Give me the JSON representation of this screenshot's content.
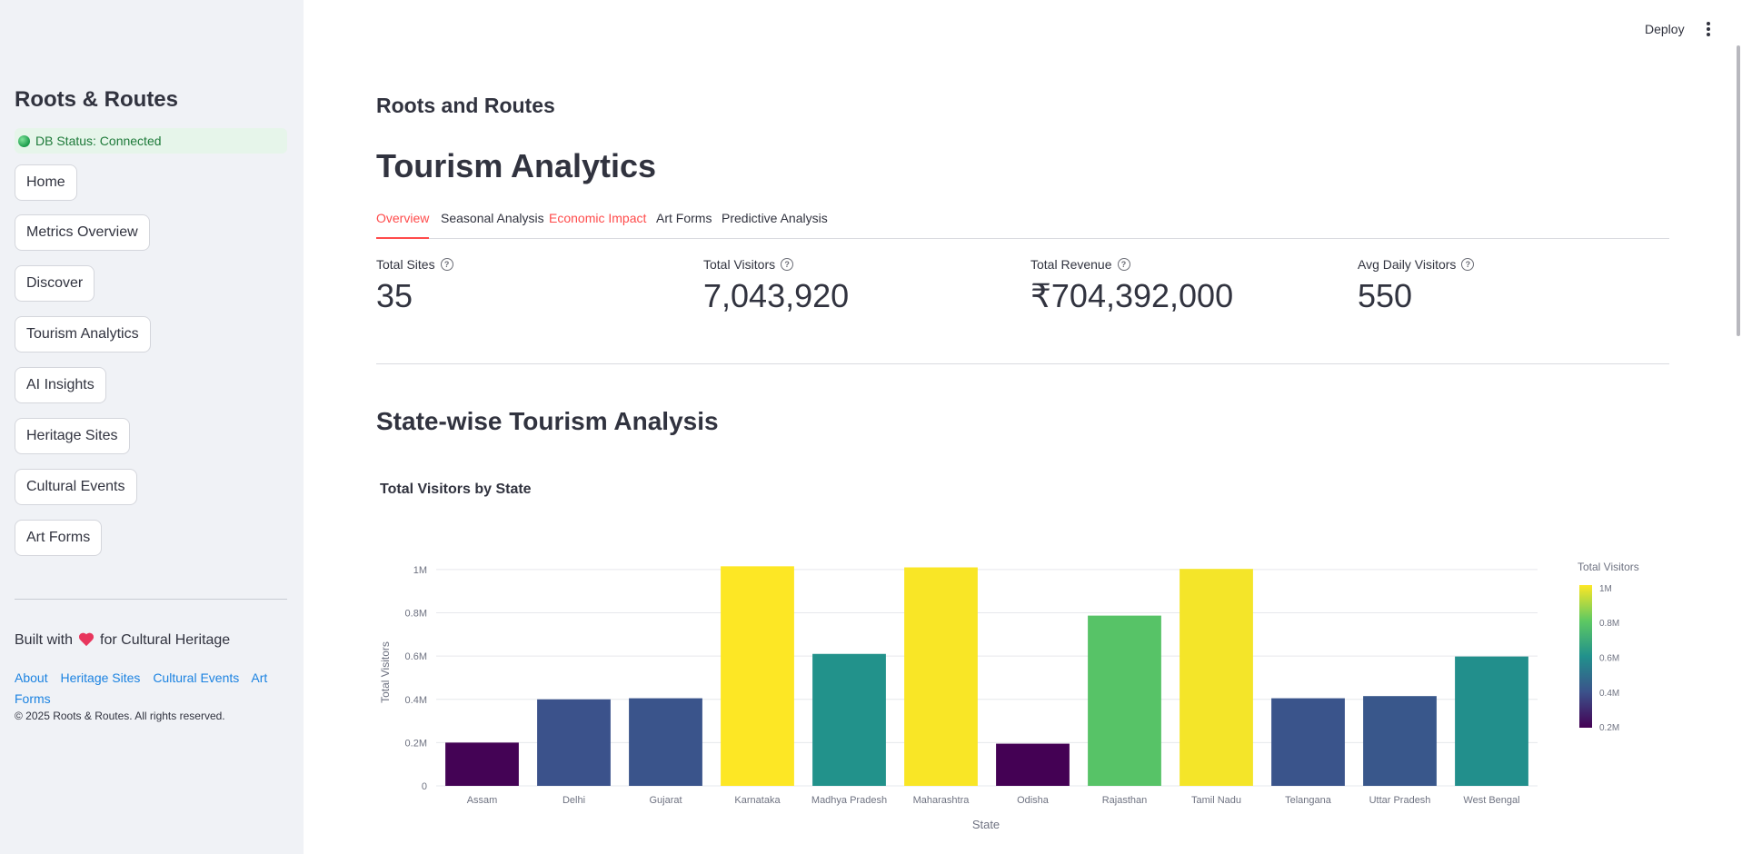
{
  "sidebar": {
    "brand": "Roots & Routes",
    "db_status": "DB Status: Connected",
    "nav": [
      "Home",
      "Metrics Overview",
      "Discover",
      "Tourism Analytics",
      "AI Insights",
      "Heritage Sites",
      "Cultural Events",
      "Art Forms"
    ],
    "built_prefix": "Built with",
    "built_suffix": "for Cultural Heritage",
    "footer_links": [
      "About",
      "Heritage Sites",
      "Cultural Events",
      "Art Forms"
    ],
    "copyright": "© 2025 Roots & Routes. All rights reserved."
  },
  "header": {
    "deploy": "Deploy"
  },
  "main": {
    "app_title": "Roots and Routes",
    "page_title": "Tourism Analytics",
    "tabs": [
      "Overview",
      "Seasonal Analysis",
      "Economic Impact",
      "Art Forms",
      "Predictive Analysis"
    ],
    "active_tab": "Overview",
    "metrics": [
      {
        "label": "Total Sites",
        "value": "35"
      },
      {
        "label": "Total Visitors",
        "value": "7,043,920"
      },
      {
        "label": "Total Revenue",
        "value": "₹704,392,000"
      },
      {
        "label": "Avg Daily Visitors",
        "value": "550"
      }
    ],
    "section_title": "State-wise Tourism Analysis"
  },
  "colors": {
    "accent": "#ff4b4b",
    "link": "#1c83e1",
    "sidebar_bg": "#f0f2f6"
  },
  "chart_data": {
    "type": "bar",
    "title": "Total Visitors by State",
    "xlabel": "State",
    "ylabel": "Total Visitors",
    "categories": [
      "Assam",
      "Delhi",
      "Gujarat",
      "Karnataka",
      "Madhya Pradesh",
      "Maharashtra",
      "Odisha",
      "Rajasthan",
      "Tamil Nadu",
      "Telangana",
      "Uttar Pradesh",
      "West Bengal"
    ],
    "values": [
      200000,
      400000,
      405000,
      1015000,
      610000,
      1010000,
      195000,
      787000,
      1003000,
      405000,
      415000,
      598000
    ],
    "ylim": [
      0,
      1050000
    ],
    "yticks": [
      0,
      200000,
      400000,
      600000,
      800000,
      1000000
    ],
    "ytick_labels": [
      "0",
      "0.2M",
      "0.4M",
      "0.6M",
      "0.8M",
      "1M"
    ],
    "colorscale": "viridis",
    "color_range": [
      195000,
      1015000
    ],
    "colorbar_title": "Total Visitors",
    "colorbar_ticks": [
      200000,
      400000,
      600000,
      800000,
      1000000
    ],
    "colorbar_tick_labels": [
      "0.2M",
      "0.4M",
      "0.6M",
      "0.8M",
      "1M"
    ],
    "grid": true,
    "legend": "right"
  }
}
